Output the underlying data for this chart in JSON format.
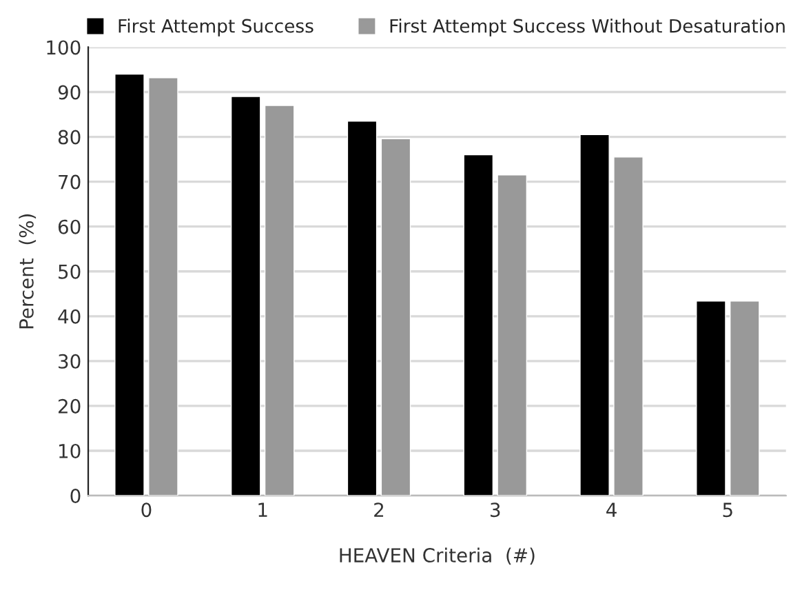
{
  "chart_data": {
    "type": "bar",
    "xlabel": "HEAVEN Criteria  (#)",
    "ylabel": "Percent  (%)",
    "categories": [
      "0",
      "1",
      "2",
      "3",
      "4",
      "5"
    ],
    "series": [
      {
        "name": "First Attempt Success",
        "color": "#000000",
        "values": [
          94,
          89,
          83.5,
          76,
          80.5,
          43.4
        ]
      },
      {
        "name": "First Attempt Success Without Desaturation",
        "color": "#999999",
        "values": [
          93.2,
          87,
          79.6,
          71.5,
          75.5,
          43.4
        ]
      }
    ],
    "ylim": [
      0,
      100
    ],
    "yticks": [
      0,
      10,
      20,
      30,
      40,
      50,
      60,
      70,
      80,
      90,
      100
    ],
    "grid": "y",
    "legend": "top"
  }
}
